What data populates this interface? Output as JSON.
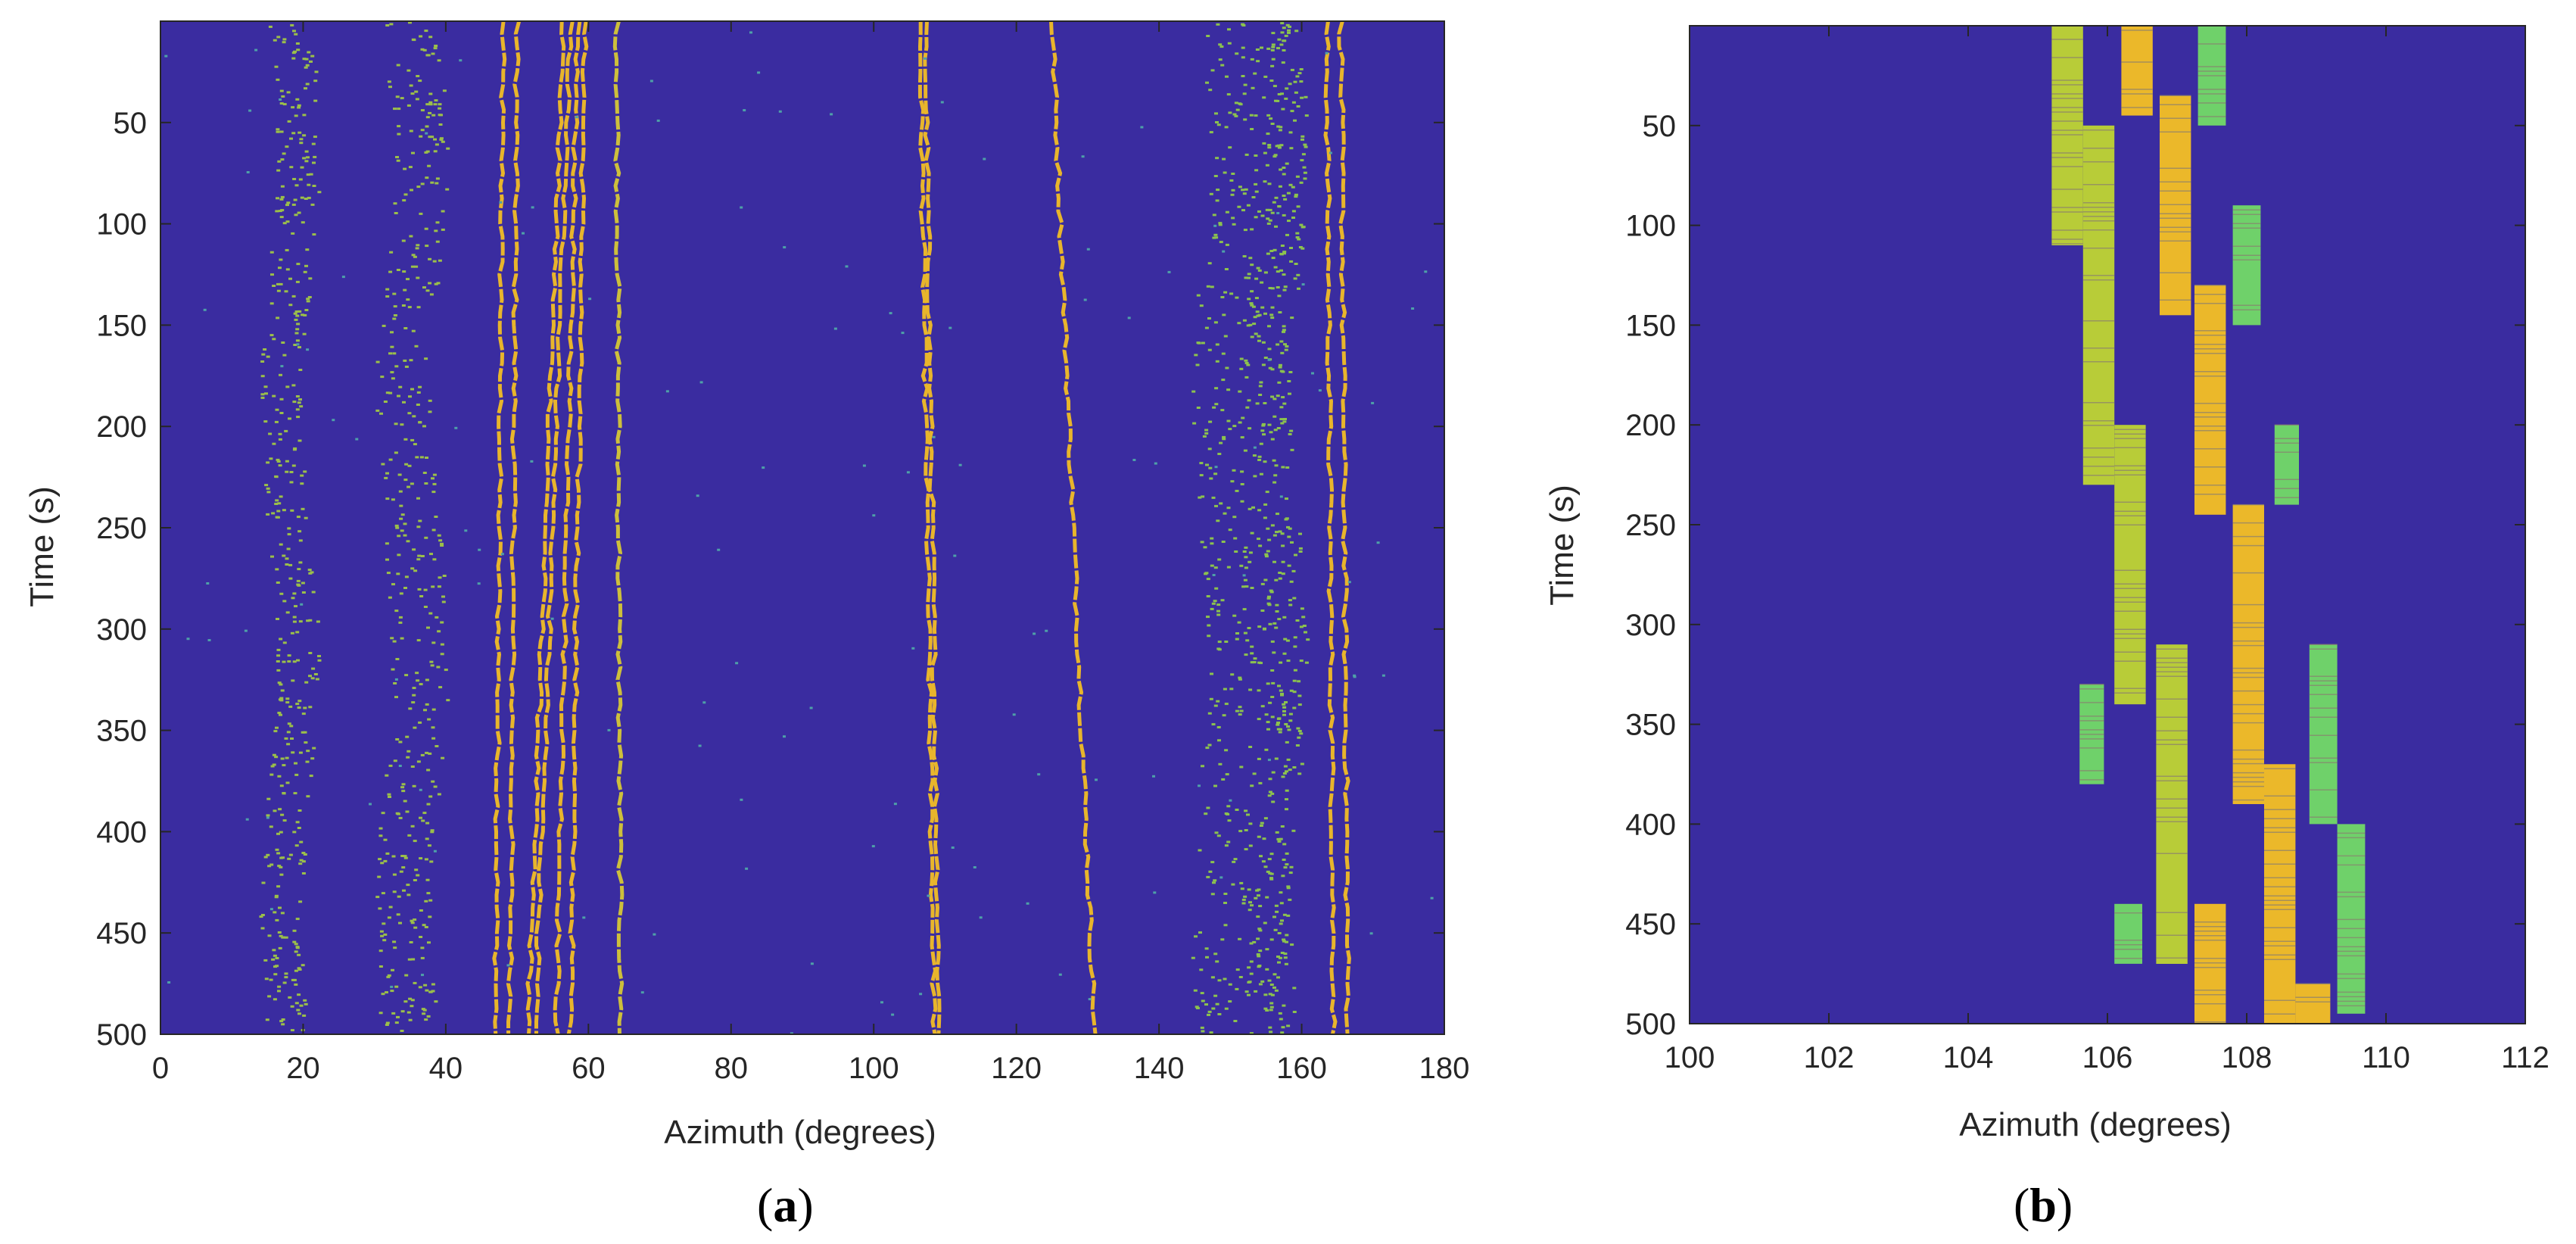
{
  "chart_data": [
    {
      "type": "heatmap",
      "panel": "(a)",
      "caption_open": "(",
      "caption_letter": "a",
      "caption_close": ")",
      "xlabel": "Azimuth (degrees)",
      "ylabel": "Time (s)",
      "xlim": [
        0,
        180
      ],
      "ylim": [
        0,
        500
      ],
      "y_reversed": true,
      "xticks": [
        0,
        20,
        40,
        60,
        80,
        100,
        120,
        140,
        160,
        180
      ],
      "yticks": [
        50,
        100,
        150,
        200,
        250,
        300,
        350,
        400,
        450,
        500
      ],
      "background_color": "#3a2ca0",
      "tracks": [
        {
          "name": "track-48",
          "kind": "line",
          "az_start": 48,
          "az_end": 47,
          "color": "#e8b52c"
        },
        {
          "name": "track-50",
          "kind": "line",
          "az_start": 50,
          "az_end": 49,
          "color": "#e8b52c"
        },
        {
          "name": "track-56",
          "kind": "line",
          "az_start": 56.5,
          "az_end": 51.5,
          "color": "#e8b52c"
        },
        {
          "name": "track-57",
          "kind": "line",
          "az_start": 57.5,
          "az_end": 52.5,
          "color": "#e8b52c"
        },
        {
          "name": "track-58",
          "kind": "line",
          "az_start": 58.5,
          "az_end": 55.5,
          "color": "#e8b52c"
        },
        {
          "name": "track-59",
          "kind": "line",
          "az_start": 59.5,
          "az_end": 57.5,
          "color": "#e8b52c"
        },
        {
          "name": "track-64",
          "kind": "line",
          "az_start": 64,
          "az_end": 64.5,
          "color": "#cdbf3c"
        },
        {
          "name": "track-106",
          "kind": "line",
          "az_start": 106.5,
          "az_end": 108.5,
          "color": "#e8b52c"
        },
        {
          "name": "track-107",
          "kind": "line",
          "az_start": 107.2,
          "az_end": 109.2,
          "color": "#e8b52c"
        },
        {
          "name": "track-125",
          "kind": "line",
          "az_start": 125,
          "az_end": 131,
          "color": "#e8b52c"
        },
        {
          "name": "track-163",
          "kind": "line",
          "az_start": 163.5,
          "az_end": 164.5,
          "color": "#e8b52c"
        },
        {
          "name": "track-166",
          "kind": "line",
          "az_start": 165.5,
          "az_end": 166.5,
          "color": "#e8b52c"
        },
        {
          "name": "scatter-18",
          "kind": "speckle",
          "az_center": 18,
          "width": 6,
          "color": "#9bbf4a"
        },
        {
          "name": "scatter-35",
          "kind": "speckle",
          "az_center": 35,
          "width": 8,
          "color": "#9bbf4a"
        },
        {
          "name": "scatter-150",
          "kind": "speckle",
          "az_center": 150,
          "width": 9,
          "color": "#8cc24e"
        },
        {
          "name": "scatter-157",
          "kind": "speckle",
          "az_center": 157,
          "width": 5,
          "color": "#8cc24e"
        }
      ]
    },
    {
      "type": "heatmap",
      "panel": "(b)",
      "caption_open": "(",
      "caption_letter": "b",
      "caption_close": ")",
      "xlabel": "Azimuth (degrees)",
      "ylabel": "Time (s)",
      "xlim": [
        100,
        112
      ],
      "ylim": [
        0,
        500
      ],
      "y_reversed": true,
      "xticks": [
        100,
        102,
        104,
        106,
        108,
        110,
        112
      ],
      "yticks": [
        50,
        100,
        150,
        200,
        250,
        300,
        350,
        400,
        450,
        500
      ],
      "background_color": "#3a2ca0",
      "blocks": [
        {
          "name": "block-a1",
          "az_start": 105.2,
          "az_end": 105.65,
          "t_start": 0,
          "t_end": 110,
          "color": "#b8cc38"
        },
        {
          "name": "block-a2",
          "az_start": 105.65,
          "az_end": 106.1,
          "t_start": 50,
          "t_end": 230,
          "color": "#b8cc38"
        },
        {
          "name": "block-a3",
          "az_start": 106.1,
          "az_end": 106.55,
          "t_start": 200,
          "t_end": 340,
          "color": "#b8cc38"
        },
        {
          "name": "block-a4",
          "az_start": 106.7,
          "az_end": 107.15,
          "t_start": 310,
          "t_end": 470,
          "color": "#b8cc38"
        },
        {
          "name": "block-b1",
          "az_start": 106.2,
          "az_end": 106.65,
          "t_start": 0,
          "t_end": 45,
          "color": "#ebb82a"
        },
        {
          "name": "block-b2",
          "az_start": 106.75,
          "az_end": 107.2,
          "t_start": 35,
          "t_end": 145,
          "color": "#ebb82a"
        },
        {
          "name": "block-b3",
          "az_start": 107.25,
          "az_end": 107.7,
          "t_start": 130,
          "t_end": 245,
          "color": "#ebb82a"
        },
        {
          "name": "block-b4",
          "az_start": 107.8,
          "az_end": 108.25,
          "t_start": 240,
          "t_end": 390,
          "color": "#ebb82a"
        },
        {
          "name": "block-b5",
          "az_start": 108.25,
          "az_end": 108.7,
          "t_start": 370,
          "t_end": 500,
          "color": "#ebb82a"
        },
        {
          "name": "block-b6",
          "az_start": 107.25,
          "az_end": 107.7,
          "t_start": 440,
          "t_end": 500,
          "color": "#ebb82a"
        },
        {
          "name": "block-b7",
          "az_start": 108.7,
          "az_end": 109.2,
          "t_start": 480,
          "t_end": 500,
          "color": "#ebb82a"
        },
        {
          "name": "block-c1",
          "az_start": 107.3,
          "az_end": 107.7,
          "t_start": 0,
          "t_end": 50,
          "color": "#6fd16a"
        },
        {
          "name": "block-c2",
          "az_start": 107.8,
          "az_end": 108.2,
          "t_start": 90,
          "t_end": 150,
          "color": "#6fd16a"
        },
        {
          "name": "block-c3",
          "az_start": 108.4,
          "az_end": 108.75,
          "t_start": 200,
          "t_end": 240,
          "color": "#6fd16a"
        },
        {
          "name": "block-c4",
          "az_start": 108.9,
          "az_end": 109.3,
          "t_start": 310,
          "t_end": 400,
          "color": "#6fd16a"
        },
        {
          "name": "block-c5",
          "az_start": 109.3,
          "az_end": 109.7,
          "t_start": 400,
          "t_end": 495,
          "color": "#6fd16a"
        },
        {
          "name": "block-c6",
          "az_start": 105.6,
          "az_end": 105.95,
          "t_start": 330,
          "t_end": 380,
          "color": "#6fd16a"
        },
        {
          "name": "block-c7",
          "az_start": 106.1,
          "az_end": 106.5,
          "t_start": 440,
          "t_end": 470,
          "color": "#6fd16a"
        }
      ]
    }
  ]
}
